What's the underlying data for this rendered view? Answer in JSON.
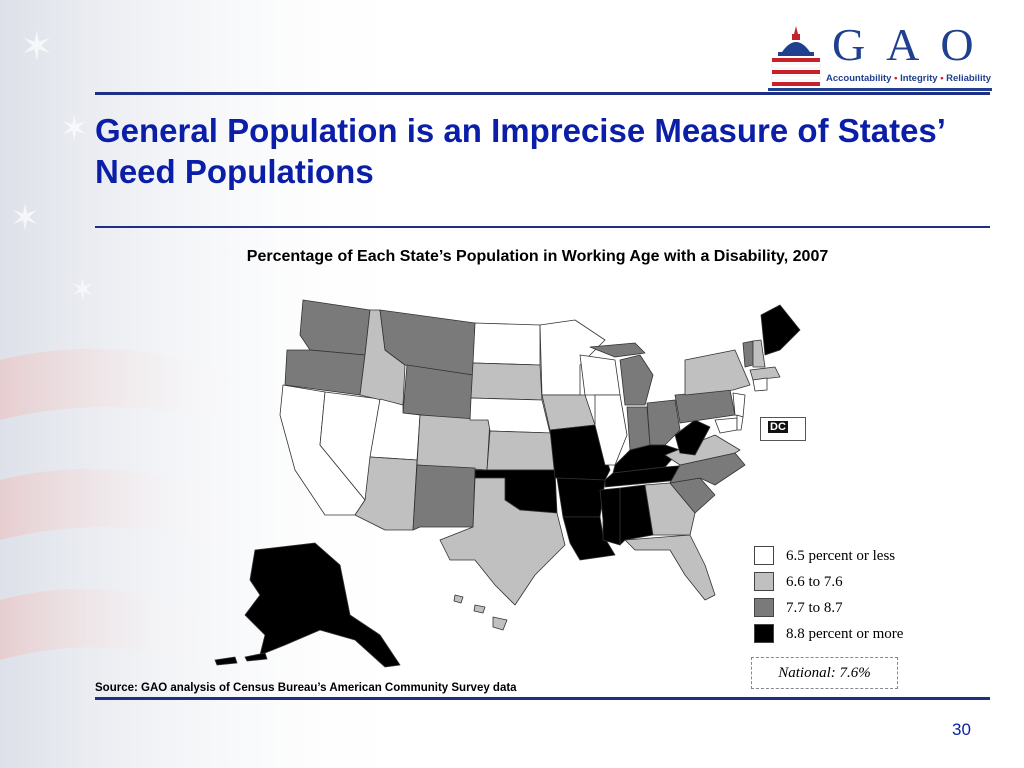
{
  "slide": {
    "title": "General Population is an Imprecise Measure of States’ Need Populations",
    "page_number": "30"
  },
  "logo": {
    "letters": "G A O",
    "tagline_1": "Accountability",
    "tagline_2": "Integrity",
    "tagline_3": "Reliability",
    "separator": "•"
  },
  "map": {
    "title": "Percentage of Each State’s Population in Working Age with a Disability, 2007",
    "dc_label": "DC",
    "national": "National: 7.6%",
    "source": "Source: GAO analysis of Census Bureau’s American Community Survey data",
    "legend": [
      {
        "label": "6.5 percent or less",
        "color": "#ffffff"
      },
      {
        "label": "6.6 to 7.6",
        "color": "#c0c0c0"
      },
      {
        "label": "7.7 to 8.7",
        "color": "#7a7a7a"
      },
      {
        "label": "8.8 percent or more",
        "color": "#000000"
      }
    ],
    "state_categories": {
      "6.5 percent or less": [
        "CA",
        "NV",
        "UT",
        "ND",
        "MN",
        "WI",
        "IL",
        "NE",
        "NJ",
        "CT",
        "DE",
        "MD",
        "NY-part"
      ],
      "6.6 to 7.6": [
        "ID",
        "CO",
        "AZ",
        "TX",
        "KS",
        "IA",
        "SD",
        "VA",
        "FL",
        "GA",
        "NH",
        "VT-part",
        "MA",
        "HI",
        "NY"
      ],
      "7.7 to 8.7": [
        "WA",
        "OR",
        "MT",
        "WY",
        "NM",
        "MI",
        "IN",
        "OH",
        "PA",
        "NC",
        "SC",
        "VT"
      ],
      "8.8 percent or more": [
        "AK",
        "ME",
        "MO",
        "AR",
        "OK",
        "LA",
        "MS",
        "AL",
        "TN",
        "KY",
        "WV"
      ]
    }
  }
}
